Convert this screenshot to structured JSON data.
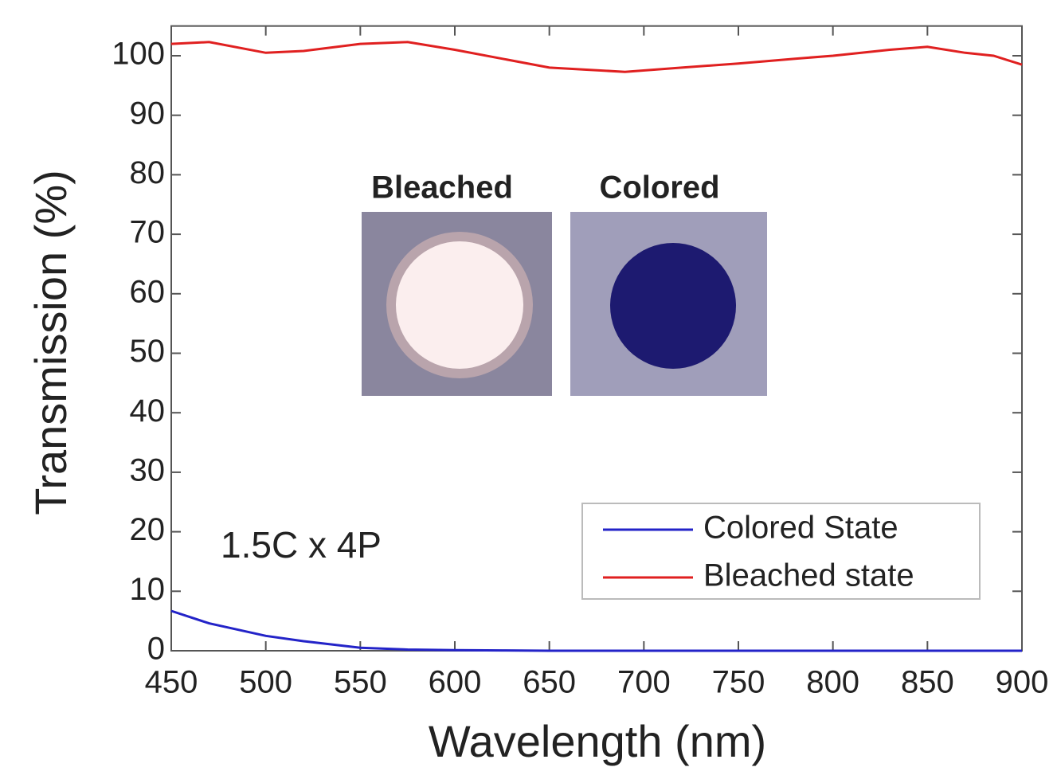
{
  "chart_data": {
    "type": "line",
    "xlabel": "Wavelength (nm)",
    "ylabel": "Transmission (%)",
    "annotations": [
      "1.5C x 4P",
      "Bleached",
      "Colored"
    ],
    "x": [
      450,
      470,
      500,
      520,
      550,
      575,
      600,
      625,
      650,
      690,
      720,
      750,
      780,
      800,
      830,
      850,
      870,
      885,
      900
    ],
    "series": [
      {
        "name": "Colored State",
        "color": "#2323c8",
        "values": [
          6.7,
          4.6,
          2.5,
          1.6,
          0.5,
          0.2,
          0.1,
          0.05,
          0,
          0,
          0,
          0,
          0,
          0,
          0,
          0,
          0,
          0,
          0
        ]
      },
      {
        "name": "Bleached state",
        "color": "#e02020",
        "values": [
          102,
          102.3,
          100.5,
          100.8,
          102,
          102.3,
          101,
          99.5,
          98,
          97.3,
          98,
          98.7,
          99.5,
          100,
          101,
          101.5,
          100.5,
          100,
          98.5
        ]
      }
    ],
    "xlim": [
      450,
      900
    ],
    "xticks": [
      450,
      500,
      550,
      600,
      650,
      700,
      750,
      800,
      850,
      900
    ],
    "ylim": [
      0,
      105
    ],
    "yticks": [
      0,
      10,
      20,
      30,
      40,
      50,
      60,
      70,
      80,
      90,
      100
    ],
    "legend": "lower right"
  }
}
